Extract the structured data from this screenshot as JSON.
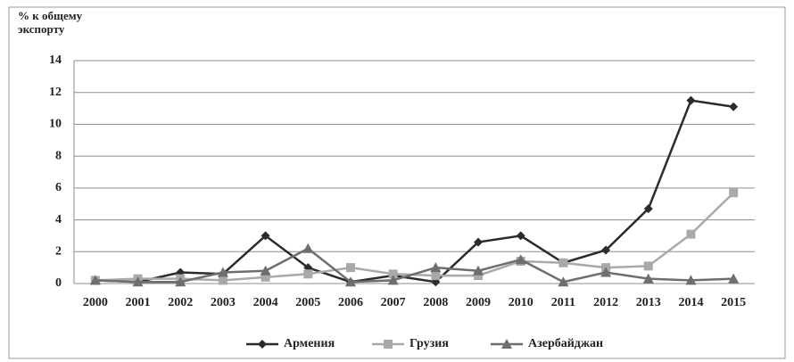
{
  "chart_data": {
    "type": "line",
    "y_label": "% к общему экспорту",
    "categories": [
      "2000",
      "2001",
      "2002",
      "2003",
      "2004",
      "2005",
      "2006",
      "2007",
      "2008",
      "2009",
      "2010",
      "2011",
      "2012",
      "2013",
      "2014",
      "2015"
    ],
    "series": [
      {
        "name": "Армения",
        "color": "#2b2b2b",
        "marker": "diamond",
        "values": [
          0.2,
          0.1,
          0.7,
          0.6,
          3.0,
          1.0,
          0.1,
          0.5,
          0.1,
          2.6,
          3.0,
          1.3,
          2.1,
          4.7,
          11.5,
          11.1
        ]
      },
      {
        "name": "Грузия",
        "color": "#a9a9a9",
        "marker": "square",
        "values": [
          0.2,
          0.3,
          0.3,
          0.2,
          0.4,
          0.6,
          1.0,
          0.6,
          0.5,
          0.5,
          1.4,
          1.3,
          1.0,
          1.1,
          3.1,
          5.7
        ]
      },
      {
        "name": "Азербайджан",
        "color": "#6e6e6e",
        "marker": "triangle",
        "values": [
          0.2,
          0.1,
          0.1,
          0.7,
          0.8,
          2.2,
          0.1,
          0.2,
          1.0,
          0.8,
          1.5,
          0.1,
          0.7,
          0.3,
          0.2,
          0.3
        ]
      }
    ],
    "ylim": [
      0,
      14
    ],
    "yticks": [
      0,
      2,
      4,
      6,
      8,
      10,
      12,
      14
    ],
    "grid": true,
    "legend": "bottom"
  }
}
